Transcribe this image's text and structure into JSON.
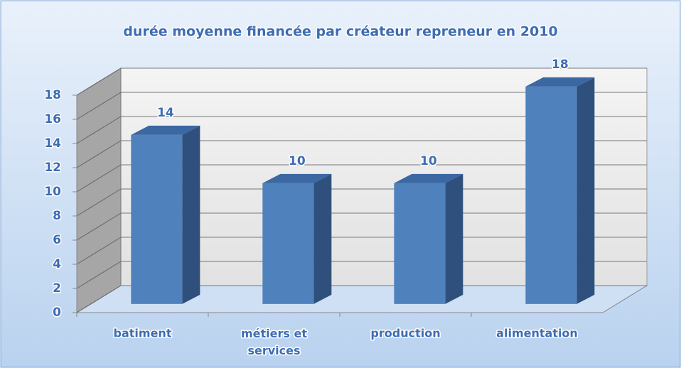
{
  "chart_data": {
    "type": "bar3d",
    "title": "durée moyenne financée par créateur repreneur en 2010",
    "categories": [
      "batiment",
      "métiers et services",
      "production",
      "alimentation"
    ],
    "values": [
      14,
      10,
      10,
      18
    ],
    "color": "#4f81bd",
    "ylim": [
      0,
      18
    ],
    "yticks": [
      0,
      2,
      4,
      6,
      8,
      10,
      12,
      14,
      16,
      18
    ],
    "grid": true
  }
}
